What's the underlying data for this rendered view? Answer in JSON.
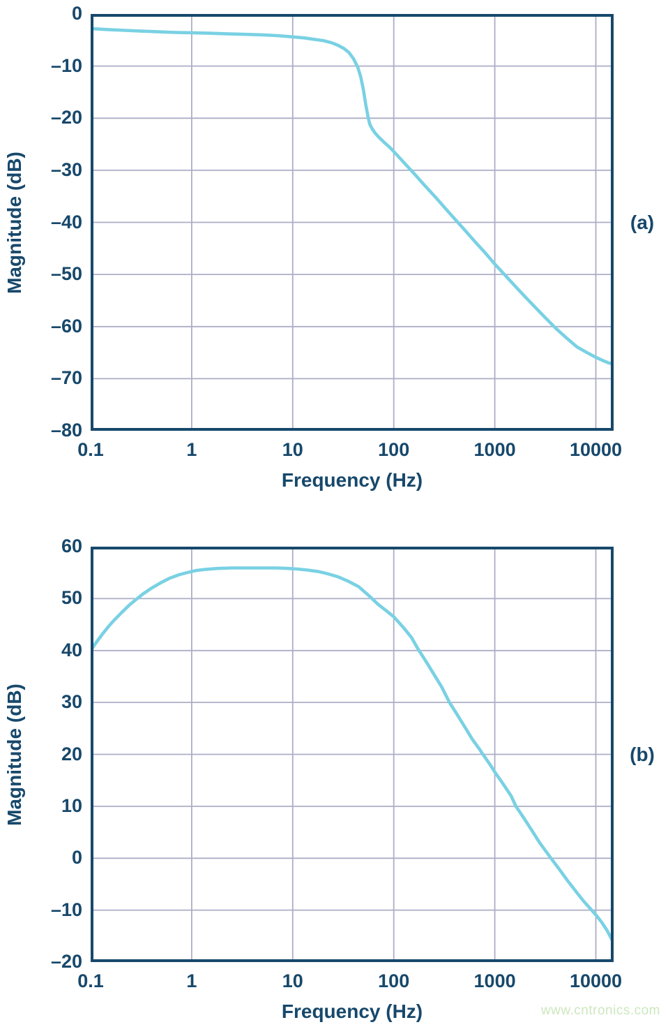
{
  "watermark": {
    "text": "www.cntronics.com",
    "color": "#cde7bf"
  },
  "colors": {
    "axis_navy": "#17486b",
    "curve_cyan": "#79d1e3",
    "grid_gray": "#abaec6",
    "background": "#ffffff"
  },
  "chart_data": [
    {
      "type": "line",
      "panel_label": "(a)",
      "xlabel": "Frequency (Hz)",
      "ylabel": "Magnitude (dB)",
      "x_scale": "log",
      "xlim": [
        0.1,
        15000
      ],
      "ylim": [
        -80,
        0
      ],
      "x_ticks": [
        0.1,
        1,
        10,
        100,
        1000,
        10000
      ],
      "x_tick_labels": [
        "0.1",
        "1",
        "10",
        "100",
        "1000",
        "10000"
      ],
      "y_ticks": [
        0,
        -10,
        -20,
        -30,
        -40,
        -50,
        -60,
        -70,
        -80
      ],
      "y_tick_labels": [
        "0",
        "–10",
        "–20",
        "–30",
        "–40",
        "–50",
        "–60",
        "–70",
        "–80"
      ],
      "grid": true,
      "legend": "none",
      "series": [
        {
          "name": "magnitude-response",
          "color": "#79d1e3",
          "points": [
            [
              0.1,
              -2.8
            ],
            [
              0.15,
              -3.0
            ],
            [
              0.22,
              -3.15
            ],
            [
              0.32,
              -3.3
            ],
            [
              0.5,
              -3.45
            ],
            [
              0.7,
              -3.55
            ],
            [
              1,
              -3.6
            ],
            [
              1.5,
              -3.7
            ],
            [
              2.2,
              -3.8
            ],
            [
              3.2,
              -3.9
            ],
            [
              5,
              -4.0
            ],
            [
              7,
              -4.15
            ],
            [
              10,
              -4.4
            ],
            [
              13,
              -4.6
            ],
            [
              16,
              -4.85
            ],
            [
              20,
              -5.1
            ],
            [
              24,
              -5.5
            ],
            [
              28,
              -6.0
            ],
            [
              32,
              -6.6
            ],
            [
              36,
              -7.4
            ],
            [
              40,
              -8.6
            ],
            [
              44,
              -10.2
            ],
            [
              47,
              -12.0
            ],
            [
              50,
              -14.5
            ],
            [
              53,
              -17.5
            ],
            [
              56,
              -20.0
            ],
            [
              58,
              -21.2
            ],
            [
              61,
              -22.0
            ],
            [
              65,
              -22.8
            ],
            [
              70,
              -23.5
            ],
            [
              80,
              -24.6
            ],
            [
              90,
              -25.5
            ],
            [
              100,
              -26.4
            ],
            [
              130,
              -28.8
            ],
            [
              160,
              -30.7
            ],
            [
              200,
              -32.8
            ],
            [
              260,
              -35.2
            ],
            [
              320,
              -37.2
            ],
            [
              400,
              -39.3
            ],
            [
              500,
              -41.4
            ],
            [
              650,
              -43.9
            ],
            [
              800,
              -45.8
            ],
            [
              1000,
              -48.0
            ],
            [
              1300,
              -50.4
            ],
            [
              1600,
              -52.3
            ],
            [
              2000,
              -54.3
            ],
            [
              2600,
              -56.6
            ],
            [
              3200,
              -58.4
            ],
            [
              4000,
              -60.3
            ],
            [
              5000,
              -62.0
            ],
            [
              6500,
              -63.9
            ],
            [
              8000,
              -64.9
            ],
            [
              10000,
              -65.9
            ],
            [
              12000,
              -66.6
            ],
            [
              13500,
              -67.0
            ],
            [
              15000,
              -67.2
            ]
          ]
        }
      ]
    },
    {
      "type": "line",
      "panel_label": "(b)",
      "xlabel": "Frequency (Hz)",
      "ylabel": "Magnitude (dB)",
      "x_scale": "log",
      "xlim": [
        0.1,
        15000
      ],
      "ylim": [
        -20,
        60
      ],
      "x_ticks": [
        0.1,
        1,
        10,
        100,
        1000,
        10000
      ],
      "x_tick_labels": [
        "0.1",
        "1",
        "10",
        "100",
        "1000",
        "10000"
      ],
      "y_ticks": [
        60,
        50,
        40,
        30,
        20,
        10,
        0,
        -10,
        -20
      ],
      "y_tick_labels": [
        "60",
        "50",
        "40",
        "30",
        "20",
        "10",
        "0",
        "–10",
        "–20"
      ],
      "grid": true,
      "legend": "none",
      "series": [
        {
          "name": "magnitude-response",
          "color": "#79d1e3",
          "points": [
            [
              0.1,
              40.0
            ],
            [
              0.115,
              41.7
            ],
            [
              0.13,
              43.1
            ],
            [
              0.15,
              44.6
            ],
            [
              0.17,
              45.8
            ],
            [
              0.2,
              47.2
            ],
            [
              0.24,
              48.7
            ],
            [
              0.28,
              49.8
            ],
            [
              0.33,
              50.9
            ],
            [
              0.4,
              52.0
            ],
            [
              0.5,
              53.1
            ],
            [
              0.6,
              53.9
            ],
            [
              0.75,
              54.6
            ],
            [
              0.9,
              55.0
            ],
            [
              1.1,
              55.4
            ],
            [
              1.4,
              55.65
            ],
            [
              1.8,
              55.8
            ],
            [
              2.5,
              55.9
            ],
            [
              3.5,
              55.9
            ],
            [
              5,
              55.9
            ],
            [
              7,
              55.9
            ],
            [
              9,
              55.8
            ],
            [
              11,
              55.7
            ],
            [
              14,
              55.5
            ],
            [
              18,
              55.2
            ],
            [
              22,
              54.8
            ],
            [
              28,
              54.2
            ],
            [
              35,
              53.4
            ],
            [
              45,
              52.3
            ],
            [
              58,
              50.4
            ],
            [
              70,
              48.9
            ],
            [
              85,
              47.6
            ],
            [
              100,
              46.5
            ],
            [
              125,
              44.4
            ],
            [
              150,
              42.5
            ],
            [
              175,
              40.2
            ],
            [
              210,
              37.8
            ],
            [
              250,
              35.4
            ],
            [
              300,
              32.9
            ],
            [
              356,
              30.0
            ],
            [
              420,
              27.8
            ],
            [
              500,
              25.4
            ],
            [
              600,
              22.9
            ],
            [
              700,
              21.1
            ],
            [
              764,
              20.0
            ],
            [
              900,
              18.0
            ],
            [
              1000,
              16.6
            ],
            [
              1200,
              14.4
            ],
            [
              1450,
              12.0
            ],
            [
              1620,
              10.0
            ],
            [
              1900,
              8.0
            ],
            [
              2300,
              5.5
            ],
            [
              2800,
              2.9
            ],
            [
              3600,
              0.0
            ],
            [
              4300,
              -2.0
            ],
            [
              5200,
              -4.2
            ],
            [
              6300,
              -6.3
            ],
            [
              7600,
              -8.3
            ],
            [
              9000,
              -9.9
            ],
            [
              10000,
              -10.9
            ],
            [
              11500,
              -12.4
            ],
            [
              13000,
              -14.0
            ],
            [
              15000,
              -16.3
            ]
          ]
        }
      ]
    }
  ]
}
